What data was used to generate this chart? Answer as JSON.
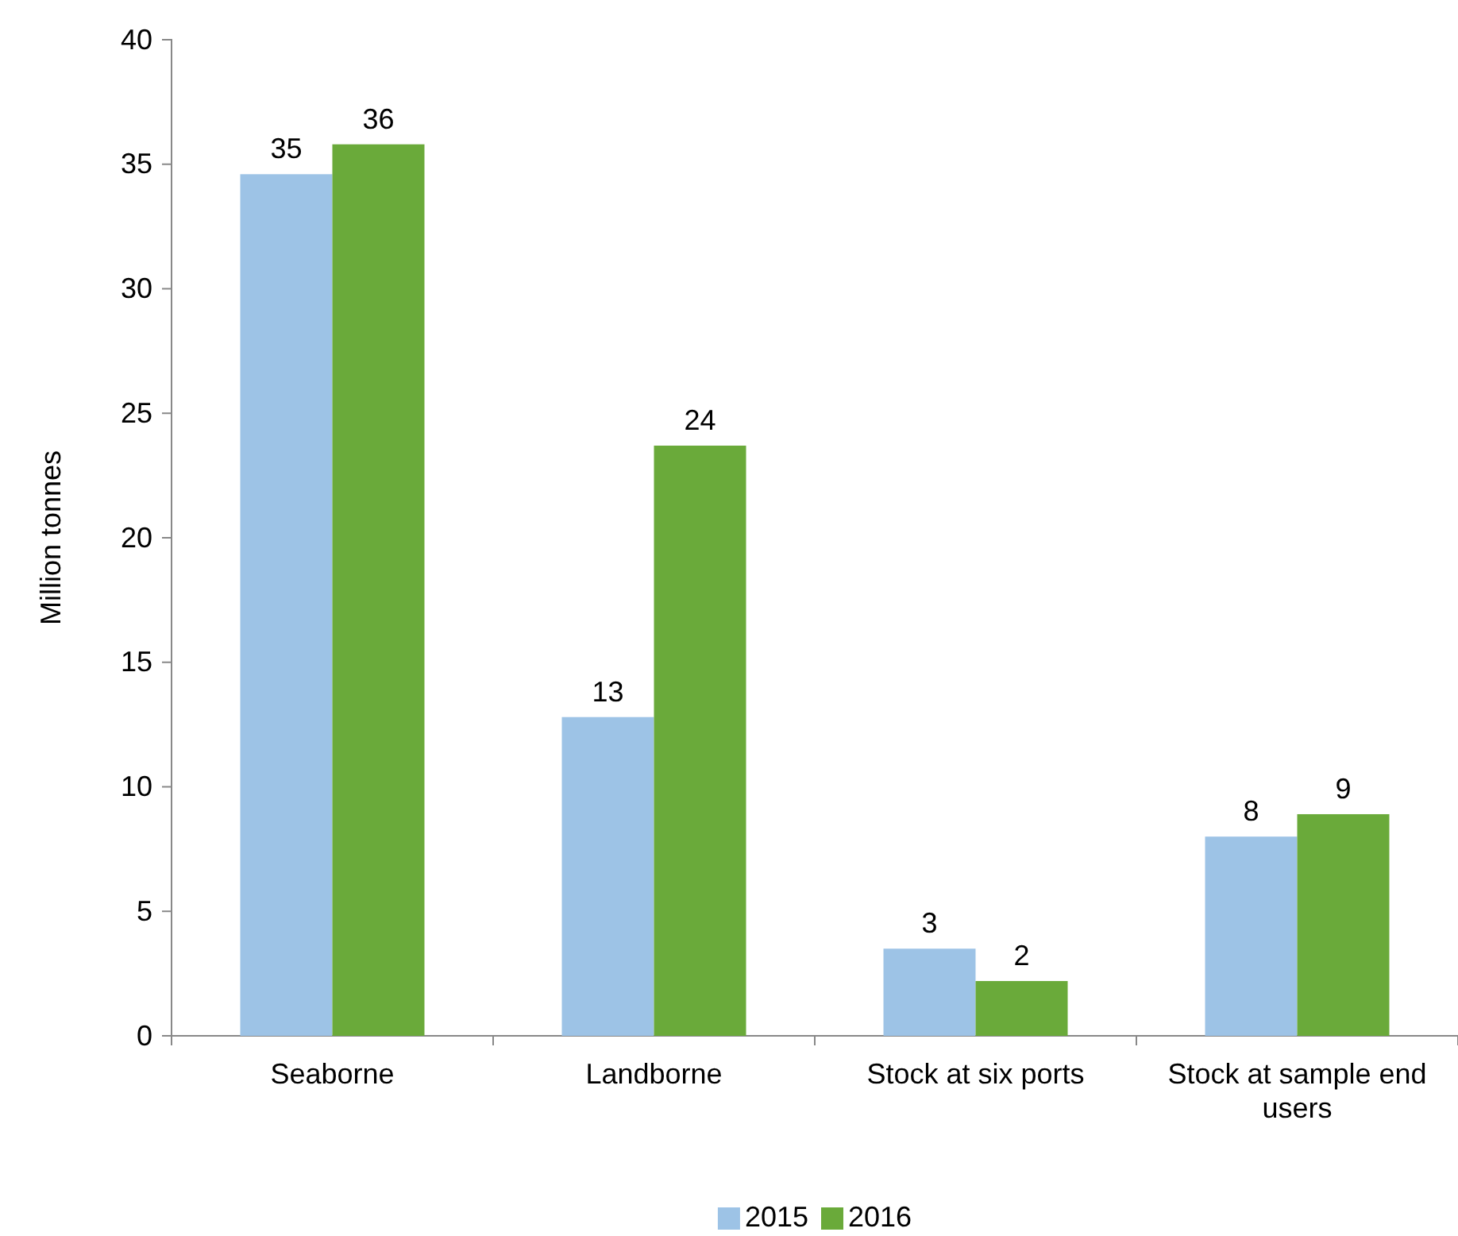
{
  "chart_data": {
    "type": "bar",
    "ylabel": "Million tonnes",
    "categories": [
      "Seaborne",
      "Landborne",
      "Stock at six ports",
      "Stock at sample end users"
    ],
    "series": [
      {
        "name": "2015",
        "color": "#9dc3e6",
        "values": [
          34.6,
          12.8,
          3.5,
          8.0
        ],
        "value_labels": [
          "35",
          "13",
          "3",
          "8"
        ]
      },
      {
        "name": "2016",
        "color": "#6aaa3a",
        "values": [
          35.8,
          23.7,
          2.2,
          8.9
        ],
        "value_labels": [
          "36",
          "24",
          "2",
          "9"
        ]
      }
    ],
    "ylim": [
      0,
      40
    ],
    "yticks": [
      0,
      5,
      10,
      15,
      20,
      25,
      30,
      35,
      40
    ],
    "grid": false,
    "legend": "bottom"
  }
}
